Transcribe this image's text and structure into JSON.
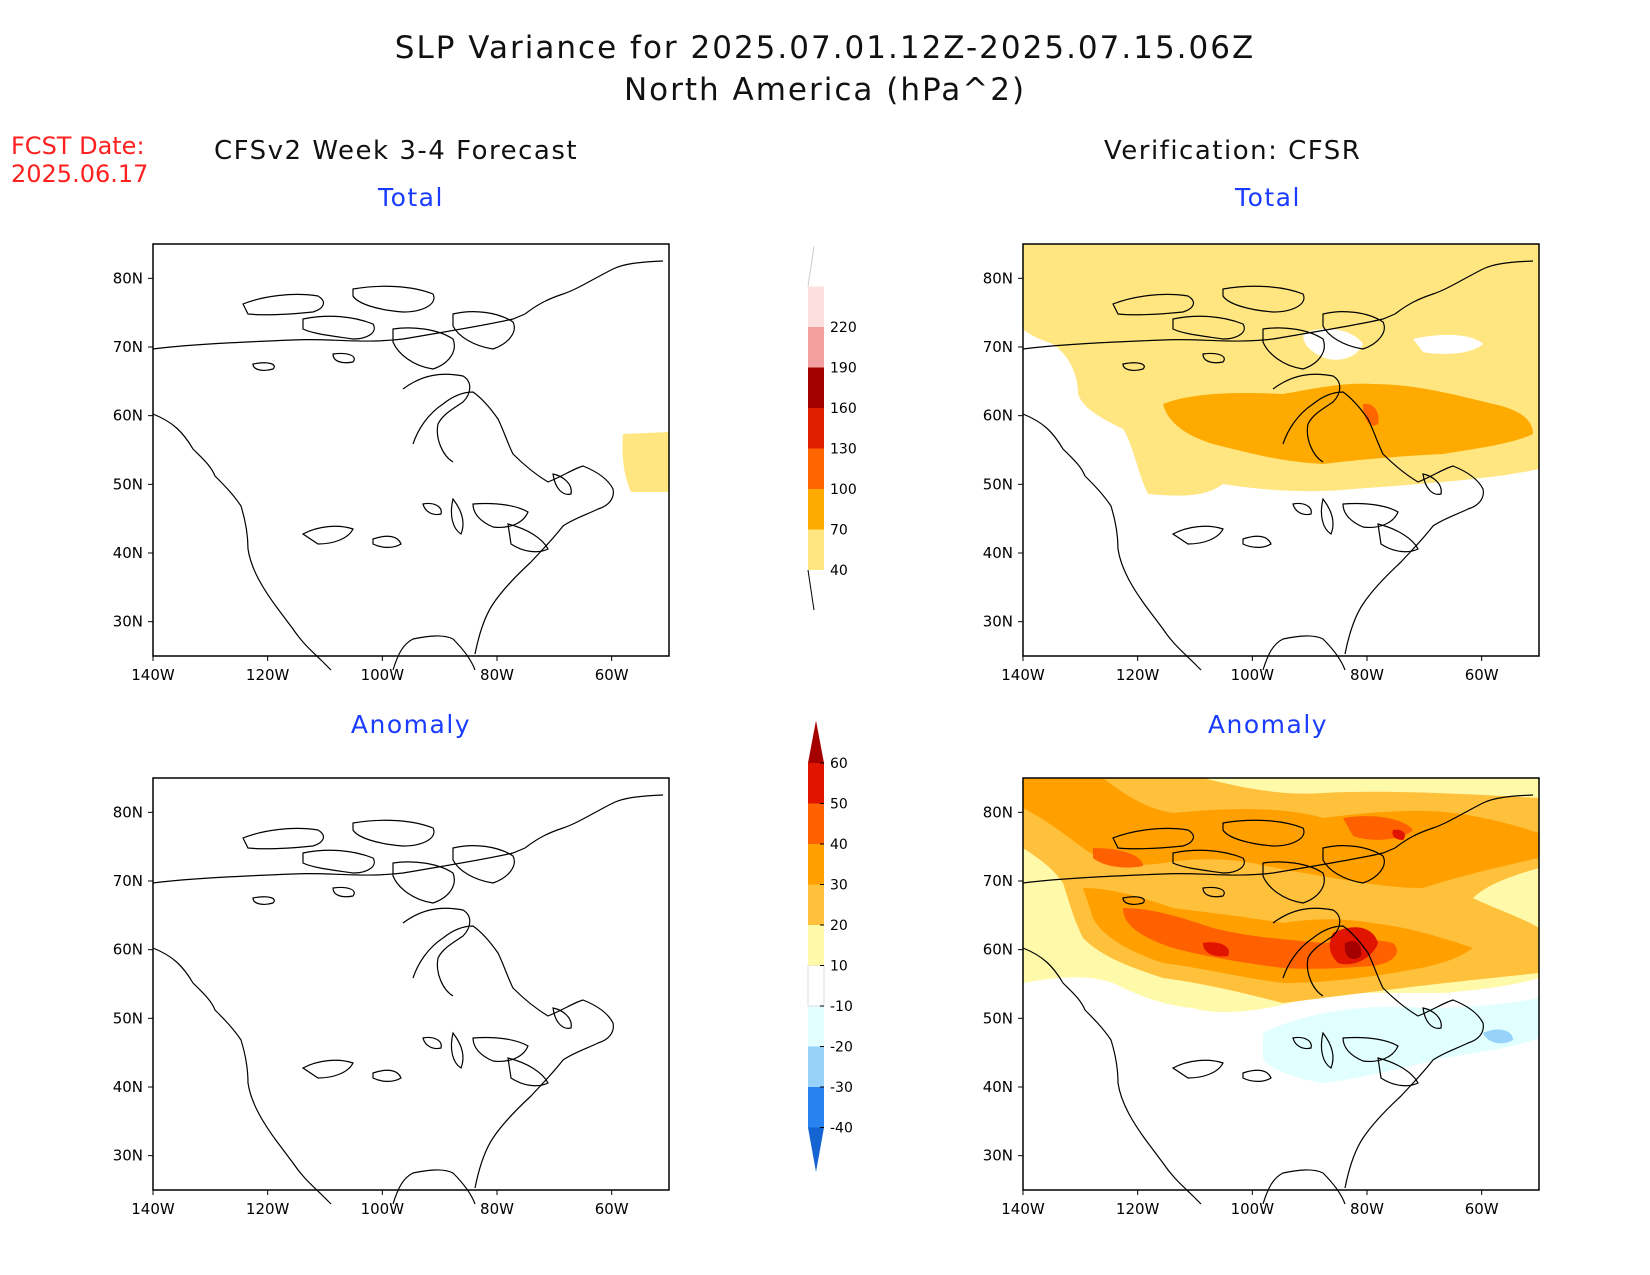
{
  "header": {
    "title": "SLP Variance for 2025.07.01.12Z-2025.07.15.06Z",
    "subtitle": "North America (hPa^2)",
    "fcst_label": "FCST Date:",
    "fcst_date": "2025.06.17",
    "left_heading": "CFSv2 Week 3-4 Forecast",
    "right_heading": "Verification: CFSR"
  },
  "panels": {
    "tl_title": "Total",
    "tr_title": "Total",
    "bl_title": "Anomaly",
    "br_title": "Anomaly"
  },
  "axes": {
    "lat_ticks": [
      "80N",
      "70N",
      "60N",
      "50N",
      "40N",
      "30N"
    ],
    "lon_ticks": [
      "140W",
      "120W",
      "100W",
      "80W",
      "60W"
    ]
  },
  "colorbars": {
    "total": {
      "labels": [
        "40",
        "70",
        "100",
        "130",
        "160",
        "190",
        "220"
      ],
      "colors": [
        "#ffe680",
        "#ffaa00",
        "#ff6600",
        "#e01e00",
        "#a50000",
        "#f4a0a0",
        "#fce0e0"
      ]
    },
    "anomaly": {
      "labels": [
        "-40",
        "-30",
        "-20",
        "-10",
        "10",
        "20",
        "30",
        "40",
        "50",
        "60"
      ],
      "colors": [
        "#1464d2",
        "#2882f0",
        "#96d2fa",
        "#e0fffe",
        "#ffffff",
        "#fffaaa",
        "#ffc03c",
        "#ffa000",
        "#ff6000",
        "#e11400",
        "#a50000"
      ]
    }
  }
}
